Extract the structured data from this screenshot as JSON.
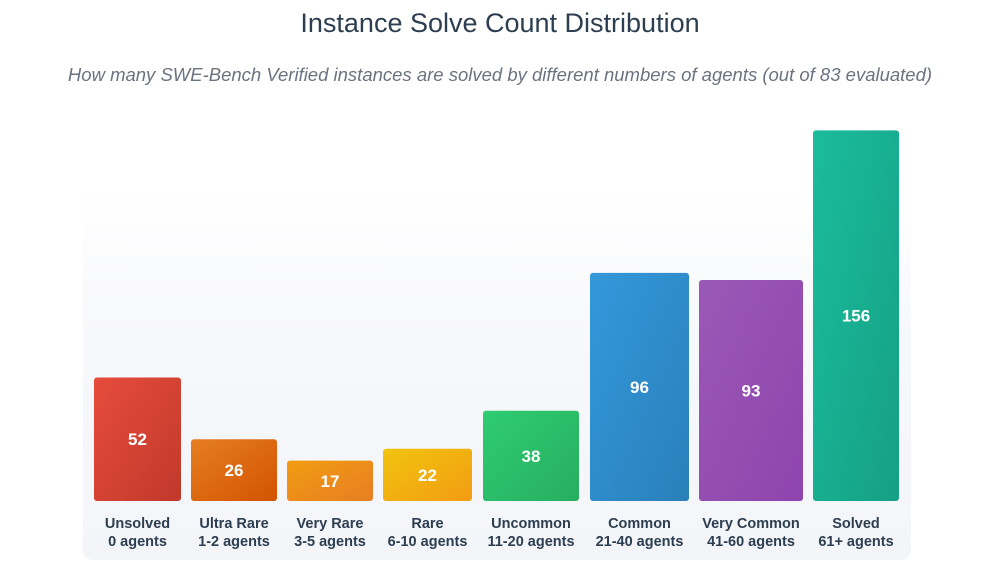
{
  "title": "Instance Solve Count Distribution",
  "subtitle": "How many SWE-Bench Verified instances are solved by different numbers of agents (out of 83 evaluated)",
  "chart_data": {
    "type": "bar",
    "title": "Instance Solve Count Distribution",
    "subtitle": "How many SWE-Bench Verified instances are solved by different numbers of agents (out of 83 evaluated)",
    "xlabel": "",
    "ylabel": "",
    "ylim": [
      0,
      160
    ],
    "grid": false,
    "legend": "none",
    "categories": [
      {
        "name": "Unsolved",
        "range": "0 agents"
      },
      {
        "name": "Ultra Rare",
        "range": "1-2 agents"
      },
      {
        "name": "Very Rare",
        "range": "3-5 agents"
      },
      {
        "name": "Rare",
        "range": "6-10 agents"
      },
      {
        "name": "Uncommon",
        "range": "11-20 agents"
      },
      {
        "name": "Common",
        "range": "21-40 agents"
      },
      {
        "name": "Very Common",
        "range": "41-60 agents"
      },
      {
        "name": "Solved",
        "range": "61+ agents"
      }
    ],
    "values": [
      52,
      26,
      17,
      22,
      38,
      96,
      93,
      156
    ],
    "colors": [
      [
        "#e74c3c",
        "#c0392b"
      ],
      [
        "#e67e22",
        "#d35400"
      ],
      [
        "#f39c12",
        "#e67e22"
      ],
      [
        "#f1c40f",
        "#f39c12"
      ],
      [
        "#2ecc71",
        "#27ae60"
      ],
      [
        "#3498db",
        "#2980b9"
      ],
      [
        "#9b59b6",
        "#8e44ad"
      ],
      [
        "#1abc9c",
        "#16a085"
      ]
    ]
  }
}
